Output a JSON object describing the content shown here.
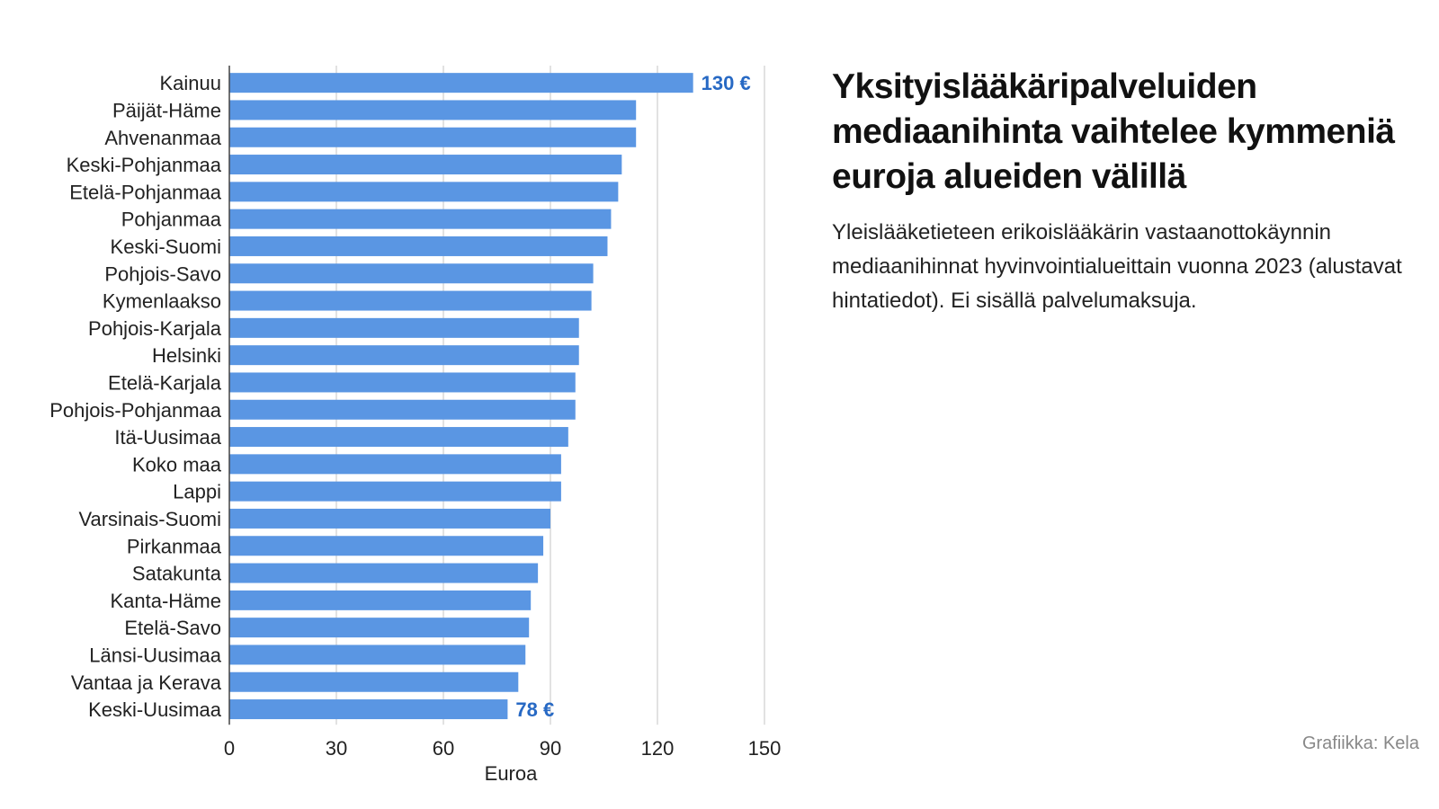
{
  "title": "Yksityislääkäripalveluiden mediaanihinta vaihtelee kymmeniä euroja alueiden välillä",
  "subtitle": "Yleislääketieteen erikoislääkärin vastaanottokäynnin mediaanihinnat hyvinvointialueittain vuonna 2023 (alustavat hintatiedot). Ei sisällä palvelumaksuja.",
  "credit": "Grafiikka: Kela",
  "chart_data": {
    "type": "bar",
    "orientation": "horizontal",
    "categories": [
      "Kainuu",
      "Päijät-Häme",
      "Ahvenanmaa",
      "Keski-Pohjanmaa",
      "Etelä-Pohjanmaa",
      "Pohjanmaa",
      "Keski-Suomi",
      "Pohjois-Savo",
      "Kymenlaakso",
      "Pohjois-Karjala",
      "Helsinki",
      "Etelä-Karjala",
      "Pohjois-Pohjanmaa",
      "Itä-Uusimaa",
      "Koko maa",
      "Lappi",
      "Varsinais-Suomi",
      "Pirkanmaa",
      "Satakunta",
      "Kanta-Häme",
      "Etelä-Savo",
      "Länsi-Uusimaa",
      "Vantaa ja Kerava",
      "Keski-Uusimaa"
    ],
    "values": [
      130,
      114,
      114,
      110,
      109,
      107,
      106,
      102,
      101.5,
      98,
      98,
      97,
      97,
      95,
      93,
      93,
      90,
      88,
      86.5,
      84.5,
      84,
      83,
      81,
      78
    ],
    "data_labels": [
      {
        "category": "Kainuu",
        "text": "130 €"
      },
      {
        "category": "Keski-Uusimaa",
        "text": "78 €"
      }
    ],
    "xlabel": "Euroa",
    "xlim": [
      0,
      150
    ],
    "xticks": [
      0,
      30,
      60,
      90,
      120,
      150
    ],
    "grid": "vertical",
    "bar_color": "#5a96e3",
    "label_color": "#2769c4"
  }
}
